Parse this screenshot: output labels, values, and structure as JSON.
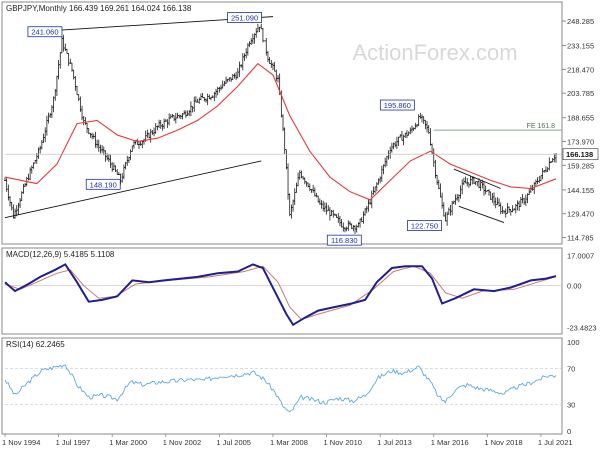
{
  "colors": {
    "price_bars": "#1a1a1a",
    "ma_line": "#e33b3b",
    "trendline": "#111111",
    "macd_line": "#1f1f8f",
    "signal_line": "#c77a7a",
    "rsi_line": "#5fa7e6",
    "ref_line": "#8ca08c",
    "label_box_border": "#1f2fa8",
    "label_box_text": "#1f2fa8",
    "panel_border": "#8a8a8a",
    "grid": "#d0d0d0",
    "watermark": "#d8d8d8"
  },
  "watermark": "ActionForex.com",
  "chart_data": [
    {
      "panel": "price",
      "type": "ohlc",
      "title": "GBPJPY,Monthly  166.439 169.261 164.024 166.138",
      "y_ticks": [
        248.285,
        233.155,
        218.47,
        203.785,
        188.655,
        173.97,
        159.285,
        144.155,
        129.47,
        114.785
      ],
      "last_price_label": "166.138",
      "last_price": 166.138,
      "ylim": [
        112,
        252
      ],
      "x_tick_labels": [
        "1 Nov 1994",
        "1 Jul 1997",
        "1 Mar 2000",
        "1 Nov 2002",
        "1 Jul 2005",
        "1 Mar 2008",
        "1 Nov 2010",
        "1 Jul 2013",
        "1 Mar 2016",
        "1 Nov 2018",
        "1 Jul 2021"
      ],
      "price_path": [
        {
          "d": "1994-11",
          "v": 150
        },
        {
          "d": "1995-04",
          "v": 128
        },
        {
          "d": "1995-12",
          "v": 150
        },
        {
          "d": "1996-08",
          "v": 170
        },
        {
          "d": "1997-04",
          "v": 200
        },
        {
          "d": "1997-09",
          "v": 236
        },
        {
          "d": "1998-03",
          "v": 218
        },
        {
          "d": "1998-10",
          "v": 186
        },
        {
          "d": "1999-06",
          "v": 172
        },
        {
          "d": "2000-01",
          "v": 162
        },
        {
          "d": "2000-08",
          "v": 150
        },
        {
          "d": "2001-03",
          "v": 172
        },
        {
          "d": "2001-10",
          "v": 175
        },
        {
          "d": "2002-06",
          "v": 183
        },
        {
          "d": "2003-02",
          "v": 188
        },
        {
          "d": "2003-10",
          "v": 191
        },
        {
          "d": "2004-06",
          "v": 199
        },
        {
          "d": "2005-03",
          "v": 203
        },
        {
          "d": "2005-10",
          "v": 210
        },
        {
          "d": "2006-06",
          "v": 216
        },
        {
          "d": "2007-01",
          "v": 236
        },
        {
          "d": "2007-07",
          "v": 246
        },
        {
          "d": "2007-12",
          "v": 226
        },
        {
          "d": "2008-06",
          "v": 212
        },
        {
          "d": "2008-10",
          "v": 170
        },
        {
          "d": "2009-01",
          "v": 128
        },
        {
          "d": "2009-07",
          "v": 155
        },
        {
          "d": "2010-01",
          "v": 146
        },
        {
          "d": "2010-07",
          "v": 135
        },
        {
          "d": "2011-01",
          "v": 130
        },
        {
          "d": "2011-09",
          "v": 122
        },
        {
          "d": "2012-06",
          "v": 122
        },
        {
          "d": "2012-12",
          "v": 135
        },
        {
          "d": "2013-06",
          "v": 150
        },
        {
          "d": "2014-01",
          "v": 170
        },
        {
          "d": "2014-07",
          "v": 176
        },
        {
          "d": "2015-01",
          "v": 180
        },
        {
          "d": "2015-07",
          "v": 189
        },
        {
          "d": "2015-12",
          "v": 180
        },
        {
          "d": "2016-04",
          "v": 155
        },
        {
          "d": "2016-08",
          "v": 134
        },
        {
          "d": "2016-10",
          "v": 126
        },
        {
          "d": "2017-03",
          "v": 137
        },
        {
          "d": "2017-09",
          "v": 148
        },
        {
          "d": "2018-03",
          "v": 150
        },
        {
          "d": "2018-08",
          "v": 146
        },
        {
          "d": "2019-01",
          "v": 140
        },
        {
          "d": "2019-08",
          "v": 131
        },
        {
          "d": "2020-03",
          "v": 133
        },
        {
          "d": "2020-09",
          "v": 138
        },
        {
          "d": "2021-02",
          "v": 145
        },
        {
          "d": "2021-07",
          "v": 153
        },
        {
          "d": "2021-10",
          "v": 157
        },
        {
          "d": "2022-01",
          "v": 163
        },
        {
          "d": "2022-04",
          "v": 166.138
        }
      ],
      "moving_average": [
        {
          "d": "1994-11",
          "v": 152
        },
        {
          "d": "1996-06",
          "v": 148
        },
        {
          "d": "1997-06",
          "v": 160
        },
        {
          "d": "1998-06",
          "v": 185
        },
        {
          "d": "1999-06",
          "v": 187
        },
        {
          "d": "2000-06",
          "v": 178
        },
        {
          "d": "2001-06",
          "v": 174
        },
        {
          "d": "2002-06",
          "v": 176
        },
        {
          "d": "2003-06",
          "v": 181
        },
        {
          "d": "2004-06",
          "v": 187
        },
        {
          "d": "2005-06",
          "v": 196
        },
        {
          "d": "2006-06",
          "v": 208
        },
        {
          "d": "2007-06",
          "v": 222
        },
        {
          "d": "2008-03",
          "v": 215
        },
        {
          "d": "2009-01",
          "v": 190
        },
        {
          "d": "2010-01",
          "v": 168
        },
        {
          "d": "2011-01",
          "v": 152
        },
        {
          "d": "2012-01",
          "v": 143
        },
        {
          "d": "2013-01",
          "v": 138
        },
        {
          "d": "2014-01",
          "v": 150
        },
        {
          "d": "2015-01",
          "v": 162
        },
        {
          "d": "2016-01",
          "v": 168
        },
        {
          "d": "2017-01",
          "v": 160
        },
        {
          "d": "2018-01",
          "v": 155
        },
        {
          "d": "2019-01",
          "v": 150
        },
        {
          "d": "2020-01",
          "v": 146
        },
        {
          "d": "2021-01",
          "v": 145
        },
        {
          "d": "2022-04",
          "v": 151
        }
      ],
      "trendlines": [
        {
          "from": {
            "d": "1994-11",
            "v": 127
          },
          "to": {
            "d": "2007-08",
            "v": 162
          }
        },
        {
          "from": {
            "d": "1996-10",
            "v": 242
          },
          "to": {
            "d": "2008-03",
            "v": 251
          }
        },
        {
          "from": {
            "d": "2017-03",
            "v": 157
          },
          "to": {
            "d": "2019-07",
            "v": 145
          }
        },
        {
          "from": {
            "d": "2017-06",
            "v": 134
          },
          "to": {
            "d": "2019-09",
            "v": 124
          }
        }
      ],
      "reference_line": {
        "label": "FE 161.8",
        "v": 181,
        "from": "2016-03"
      },
      "annotations": [
        {
          "label": "241.060",
          "d": "1997-09",
          "v": 241.06
        },
        {
          "label": "251.090",
          "d": "2007-07",
          "v": 251.09
        },
        {
          "label": "148.190",
          "d": "2000-09",
          "v": 148.19
        },
        {
          "label": "116.830",
          "d": "2011-09",
          "v": 116.83
        },
        {
          "label": "195.860",
          "d": "2015-07",
          "v": 195.86
        },
        {
          "label": "122.750",
          "d": "2016-10",
          "v": 122.75
        }
      ]
    },
    {
      "panel": "macd",
      "type": "line",
      "title": "MACD(12,26,9) 5.4185 5.1108",
      "y_ticks_labels": [
        "17.0007",
        "0.00",
        "-23.4823"
      ],
      "y_ticks": [
        17.0007,
        0,
        -23.4823
      ],
      "ylim": [
        -25.5,
        19
      ],
      "series": [
        {
          "name": "MACD",
          "points": [
            {
              "d": "1994-11",
              "v": 2
            },
            {
              "d": "1995-05",
              "v": -3
            },
            {
              "d": "1996-01",
              "v": 1
            },
            {
              "d": "1996-08",
              "v": 5
            },
            {
              "d": "1997-05",
              "v": 9
            },
            {
              "d": "1997-11",
              "v": 12
            },
            {
              "d": "1998-06",
              "v": 2
            },
            {
              "d": "1999-01",
              "v": -9
            },
            {
              "d": "1999-09",
              "v": -8
            },
            {
              "d": "2000-06",
              "v": -6
            },
            {
              "d": "2001-03",
              "v": 3
            },
            {
              "d": "2002-01",
              "v": 2
            },
            {
              "d": "2002-10",
              "v": 3
            },
            {
              "d": "2003-08",
              "v": 4
            },
            {
              "d": "2004-06",
              "v": 5
            },
            {
              "d": "2005-06",
              "v": 7
            },
            {
              "d": "2006-06",
              "v": 8
            },
            {
              "d": "2007-03",
              "v": 12
            },
            {
              "d": "2007-09",
              "v": 10
            },
            {
              "d": "2008-04",
              "v": -3
            },
            {
              "d": "2008-11",
              "v": -16
            },
            {
              "d": "2009-03",
              "v": -22
            },
            {
              "d": "2009-10",
              "v": -18
            },
            {
              "d": "2010-06",
              "v": -14
            },
            {
              "d": "2011-04",
              "v": -12
            },
            {
              "d": "2012-02",
              "v": -10
            },
            {
              "d": "2012-10",
              "v": -8
            },
            {
              "d": "2013-05",
              "v": 2
            },
            {
              "d": "2014-02",
              "v": 10
            },
            {
              "d": "2014-10",
              "v": 11
            },
            {
              "d": "2015-08",
              "v": 11
            },
            {
              "d": "2016-02",
              "v": 4
            },
            {
              "d": "2016-08",
              "v": -10
            },
            {
              "d": "2017-04",
              "v": -7
            },
            {
              "d": "2018-03",
              "v": -2
            },
            {
              "d": "2019-03",
              "v": -3
            },
            {
              "d": "2020-01",
              "v": -1
            },
            {
              "d": "2021-01",
              "v": 3
            },
            {
              "d": "2021-10",
              "v": 4
            },
            {
              "d": "2022-04",
              "v": 5.4185
            }
          ]
        },
        {
          "name": "Signal",
          "points": [
            {
              "d": "1994-11",
              "v": 1
            },
            {
              "d": "1995-08",
              "v": -2
            },
            {
              "d": "1996-06",
              "v": 2
            },
            {
              "d": "1997-06",
              "v": 7
            },
            {
              "d": "1998-02",
              "v": 9
            },
            {
              "d": "1998-10",
              "v": 0
            },
            {
              "d": "1999-07",
              "v": -7
            },
            {
              "d": "2000-05",
              "v": -6
            },
            {
              "d": "2001-05",
              "v": 1
            },
            {
              "d": "2003-01",
              "v": 3
            },
            {
              "d": "2005-01",
              "v": 5
            },
            {
              "d": "2006-10",
              "v": 8
            },
            {
              "d": "2007-09",
              "v": 11
            },
            {
              "d": "2008-06",
              "v": 2
            },
            {
              "d": "2009-01",
              "v": -12
            },
            {
              "d": "2009-08",
              "v": -19
            },
            {
              "d": "2010-06",
              "v": -16
            },
            {
              "d": "2012-01",
              "v": -11
            },
            {
              "d": "2013-03",
              "v": -2
            },
            {
              "d": "2014-03",
              "v": 8
            },
            {
              "d": "2015-03",
              "v": 11
            },
            {
              "d": "2016-01",
              "v": 7
            },
            {
              "d": "2016-10",
              "v": -4
            },
            {
              "d": "2017-08",
              "v": -7
            },
            {
              "d": "2018-08",
              "v": -3
            },
            {
              "d": "2020-03",
              "v": -2
            },
            {
              "d": "2021-05",
              "v": 2
            },
            {
              "d": "2022-04",
              "v": 5.1108
            }
          ]
        }
      ]
    },
    {
      "panel": "rsi",
      "type": "line",
      "title": "RSI(14) 62.2465",
      "y_ticks": [
        100,
        70,
        30,
        0
      ],
      "ylim": [
        0,
        100
      ],
      "series": [
        {
          "name": "RSI",
          "points": [
            {
              "d": "1994-11",
              "v": 58
            },
            {
              "d": "1995-05",
              "v": 40
            },
            {
              "d": "1996-01",
              "v": 55
            },
            {
              "d": "1996-09",
              "v": 68
            },
            {
              "d": "1997-05",
              "v": 72
            },
            {
              "d": "1997-11",
              "v": 75
            },
            {
              "d": "1998-06",
              "v": 52
            },
            {
              "d": "1999-01",
              "v": 38
            },
            {
              "d": "1999-09",
              "v": 40
            },
            {
              "d": "2000-06",
              "v": 36
            },
            {
              "d": "2001-02",
              "v": 55
            },
            {
              "d": "2001-10",
              "v": 52
            },
            {
              "d": "2002-07",
              "v": 55
            },
            {
              "d": "2003-04",
              "v": 56
            },
            {
              "d": "2004-01",
              "v": 58
            },
            {
              "d": "2004-10",
              "v": 57
            },
            {
              "d": "2005-08",
              "v": 62
            },
            {
              "d": "2006-06",
              "v": 63
            },
            {
              "d": "2007-03",
              "v": 66
            },
            {
              "d": "2007-10",
              "v": 58
            },
            {
              "d": "2008-04",
              "v": 44
            },
            {
              "d": "2008-09",
              "v": 28
            },
            {
              "d": "2009-01",
              "v": 20
            },
            {
              "d": "2009-08",
              "v": 38
            },
            {
              "d": "2010-03",
              "v": 35
            },
            {
              "d": "2010-10",
              "v": 32
            },
            {
              "d": "2011-06",
              "v": 37
            },
            {
              "d": "2012-03",
              "v": 34
            },
            {
              "d": "2012-10",
              "v": 40
            },
            {
              "d": "2013-06",
              "v": 60
            },
            {
              "d": "2014-02",
              "v": 68
            },
            {
              "d": "2014-09",
              "v": 65
            },
            {
              "d": "2015-06",
              "v": 72
            },
            {
              "d": "2016-01",
              "v": 55
            },
            {
              "d": "2016-06",
              "v": 38
            },
            {
              "d": "2016-10",
              "v": 33
            },
            {
              "d": "2017-04",
              "v": 47
            },
            {
              "d": "2017-11",
              "v": 52
            },
            {
              "d": "2018-06",
              "v": 48
            },
            {
              "d": "2019-03",
              "v": 45
            },
            {
              "d": "2019-09",
              "v": 42
            },
            {
              "d": "2020-04",
              "v": 49
            },
            {
              "d": "2020-11",
              "v": 53
            },
            {
              "d": "2021-06",
              "v": 58
            },
            {
              "d": "2021-11",
              "v": 62
            },
            {
              "d": "2022-04",
              "v": 62.2465
            }
          ]
        }
      ]
    }
  ]
}
